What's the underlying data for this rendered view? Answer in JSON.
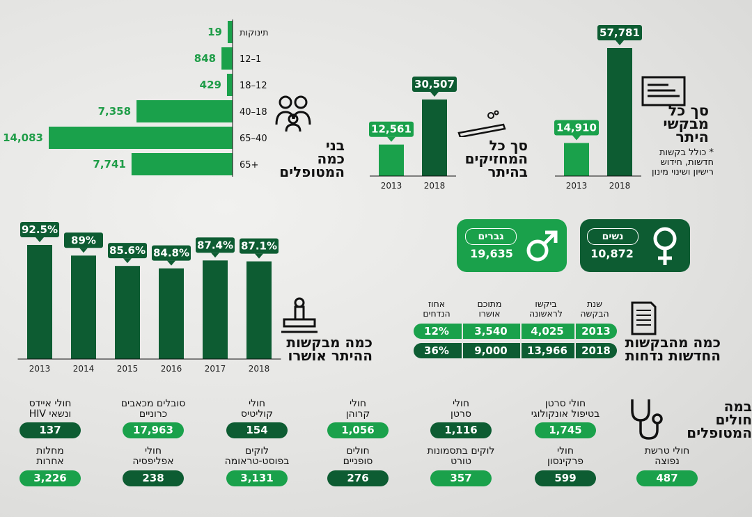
{
  "colors": {
    "dark": "#0d5c32",
    "light": "#1aa14b",
    "text_green": "#1f9d48"
  },
  "titles": {
    "ages": [
      "בני",
      "כמה",
      "המטופלים"
    ],
    "holders": [
      "סך כל",
      "המחזיקים",
      "בהיתר"
    ],
    "requests": [
      "סך כל",
      "מבקשי",
      "היתר"
    ],
    "requests_note": [
      "* כולל בקשות",
      "חדשות, חידוש",
      "רישיון ושינוי מינון"
    ],
    "approved": [
      "כמה מבקשות",
      "ההיתר אושרו"
    ],
    "rejected": [
      "כמה מהבקשות",
      "החדשות נדחות"
    ],
    "diseases": [
      "במה",
      "חולים",
      "המטופלים"
    ]
  },
  "gender": {
    "men": {
      "label": "גברים",
      "value": "19,635"
    },
    "women": {
      "label": "נשים",
      "value": "10,872"
    }
  },
  "rejections": {
    "headers": [
      [
        "אחוז",
        "הנדחים"
      ],
      [
        "מתוכם",
        "אושרו"
      ],
      [
        "ביקשו",
        "לראשונה"
      ],
      [
        "שנת",
        "הבקשה"
      ]
    ],
    "rows": [
      {
        "year": "2013",
        "first": "4,025",
        "approved": "3,540",
        "pct": "12%"
      },
      {
        "year": "2018",
        "first": "13,966",
        "approved": "9,000",
        "pct": "36%"
      }
    ]
  },
  "diseases": [
    {
      "label": [
        "חולי סרטן",
        "בטיפול אונקולוגי"
      ],
      "value": "1,745",
      "style": "lt"
    },
    {
      "label": [
        "חולי",
        "סרטן"
      ],
      "value": "1,116",
      "style": "dk"
    },
    {
      "label": [
        "חולי",
        "קרוהן"
      ],
      "value": "1,056",
      "style": "lt"
    },
    {
      "label": [
        "חולי",
        "קוליטיס"
      ],
      "value": "154",
      "style": "dk"
    },
    {
      "label": [
        "סובלים מכאבים",
        "כרוניים"
      ],
      "value": "17,963",
      "style": "lt"
    },
    {
      "label": [
        "חולי איידס",
        "ונשאי HIV"
      ],
      "value": "137",
      "style": "dk"
    },
    {
      "label": [
        "חולי טרשת",
        "נפוצה"
      ],
      "value": "487",
      "style": "lt"
    },
    {
      "label": [
        "חולי",
        "פרקינסון"
      ],
      "value": "599",
      "style": "dk"
    },
    {
      "label": [
        "לוקים בתסמונות",
        "טורט"
      ],
      "value": "357",
      "style": "lt"
    },
    {
      "label": [
        "חולים",
        "סופניים"
      ],
      "value": "276",
      "style": "dk"
    },
    {
      "label": [
        "לוקים",
        "בפוסט-טראומה"
      ],
      "value": "3,131",
      "style": "lt"
    },
    {
      "label": [
        "חולי",
        "אפליפסיה"
      ],
      "value": "238",
      "style": "dk"
    },
    {
      "label": [
        "מחלות",
        "אחרות"
      ],
      "value": "3,226",
      "style": "lt"
    }
  ],
  "chart_data": [
    {
      "type": "bar",
      "orientation": "horizontal",
      "categories": [
        "תינוקות",
        "12–1",
        "18–12",
        "40–18",
        "65–40",
        "65+"
      ],
      "values": [
        19,
        848,
        429,
        7358,
        14083,
        7741
      ],
      "labels": [
        "19",
        "848",
        "429",
        "7,358",
        "14,083",
        "7,741"
      ]
    },
    {
      "type": "bar",
      "categories": [
        "2013",
        "2018"
      ],
      "values": [
        12561,
        30507
      ],
      "labels": [
        "12,561",
        "30,507"
      ]
    },
    {
      "type": "bar",
      "categories": [
        "2013",
        "2018"
      ],
      "values": [
        14910,
        57781
      ],
      "labels": [
        "14,910",
        "57,781"
      ]
    },
    {
      "type": "bar",
      "categories": [
        "2013",
        "2014",
        "2015",
        "2016",
        "2017",
        "2018"
      ],
      "values": [
        92.5,
        89,
        85.6,
        84.8,
        87.4,
        87.1
      ],
      "labels": [
        "92.5%",
        "89%",
        "85.6%",
        "84.8%",
        "87.4%",
        "87.1%"
      ]
    }
  ]
}
